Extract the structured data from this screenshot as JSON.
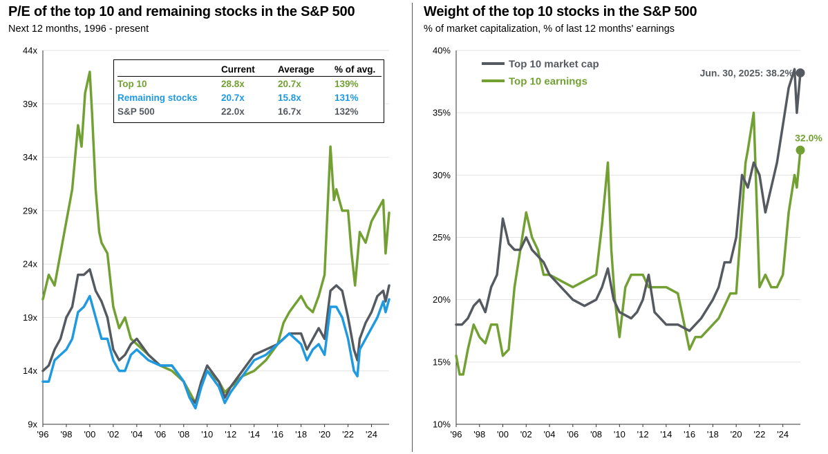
{
  "left": {
    "title": "P/E of the top 10 and remaining stocks in the S&P 500",
    "subtitle": "Next 12 months, 1996 - present",
    "table": {
      "headers": [
        "",
        "Current",
        "Average",
        "% of avg."
      ],
      "rows": [
        {
          "name": "Top 10",
          "current": "28.8x",
          "average": "20.7x",
          "pct": "139%",
          "color": "#72a033"
        },
        {
          "name": "Remaining stocks",
          "current": "20.7x",
          "average": "15.8x",
          "pct": "131%",
          "color": "#1f9ae0"
        },
        {
          "name": "S&P 500",
          "current": "22.0x",
          "average": "16.7x",
          "pct": "132%",
          "color": "#555a60"
        }
      ]
    }
  },
  "right": {
    "title": "Weight of the top 10 stocks in the S&P 500",
    "subtitle": "% of market capitalization, % of last 12 months' earnings",
    "legend": [
      {
        "label": "Top 10 market cap",
        "color": "#555a60"
      },
      {
        "label": "Top 10 earnings",
        "color": "#72a033"
      }
    ],
    "annotations": {
      "market_cap": "Jun. 30, 2025: 38.2%",
      "earnings": "32.0%"
    }
  },
  "chart_data": [
    {
      "type": "line",
      "title": "P/E of the top 10 and remaining stocks in the S&P 500",
      "subtitle": "Next 12 months, 1996 - present",
      "xlabel": "",
      "ylabel": "",
      "xlim": [
        1996,
        2025.5
      ],
      "ylim": [
        9,
        44
      ],
      "xticks": [
        "'96",
        "'98",
        "'00",
        "'02",
        "'04",
        "'06",
        "'08",
        "'10",
        "'12",
        "'14",
        "'16",
        "'18",
        "'20",
        "'22",
        "'24"
      ],
      "yticks": [
        "9x",
        "14x",
        "19x",
        "24x",
        "29x",
        "34x",
        "39x",
        "44x"
      ],
      "series": [
        {
          "name": "Top 10",
          "color": "#72a033",
          "x": [
            1996.0,
            1996.5,
            1997.0,
            1997.5,
            1998.0,
            1998.5,
            1999.0,
            1999.3,
            1999.6,
            2000.0,
            2000.2,
            2000.5,
            2000.8,
            2001.0,
            2001.5,
            2002.0,
            2002.5,
            2003.0,
            2003.5,
            2004.0,
            2005.0,
            2006.0,
            2007.0,
            2008.0,
            2008.5,
            2009.0,
            2009.5,
            2010.0,
            2011.0,
            2011.5,
            2012.0,
            2013.0,
            2014.0,
            2015.0,
            2016.0,
            2016.5,
            2017.0,
            2018.0,
            2018.5,
            2019.0,
            2019.5,
            2020.0,
            2020.5,
            2020.8,
            2021.0,
            2021.5,
            2022.0,
            2022.3,
            2022.6,
            2023.0,
            2023.5,
            2024.0,
            2024.5,
            2025.0,
            2025.2,
            2025.5
          ],
          "y": [
            20.7,
            23,
            22,
            25,
            28,
            31,
            37,
            35,
            40,
            42,
            38,
            31,
            27,
            26,
            25,
            20,
            18,
            19,
            17,
            16.5,
            15.5,
            14.5,
            14,
            13,
            12,
            11,
            13,
            14,
            13,
            12,
            12.5,
            13.5,
            14,
            15,
            16.5,
            18.5,
            19.5,
            21,
            20,
            19.5,
            21,
            23,
            35,
            30,
            31,
            29,
            29,
            25,
            22,
            27,
            26,
            28,
            29,
            30,
            25,
            28.8
          ]
        },
        {
          "name": "Remaining stocks",
          "color": "#1f9ae0",
          "x": [
            1996.0,
            1996.5,
            1997.0,
            1997.5,
            1998.0,
            1998.5,
            1999.0,
            1999.5,
            2000.0,
            2000.5,
            2001.0,
            2001.5,
            2002.0,
            2002.5,
            2003.0,
            2003.5,
            2004.0,
            2005.0,
            2006.0,
            2007.0,
            2008.0,
            2008.5,
            2009.0,
            2009.5,
            2010.0,
            2011.0,
            2011.5,
            2012.0,
            2013.0,
            2014.0,
            2015.0,
            2016.0,
            2017.0,
            2018.0,
            2018.5,
            2019.0,
            2019.5,
            2020.0,
            2020.5,
            2021.0,
            2021.5,
            2022.0,
            2022.5,
            2022.8,
            2023.0,
            2023.5,
            2024.0,
            2024.5,
            2025.0,
            2025.2,
            2025.5
          ],
          "y": [
            13,
            13,
            15,
            15.5,
            16,
            17,
            19.5,
            20,
            21,
            19,
            17,
            17,
            15,
            14,
            14,
            15.5,
            16,
            15,
            14.5,
            14.5,
            13,
            11.5,
            10.5,
            12.5,
            14,
            12.5,
            11,
            12,
            13.5,
            15,
            15.5,
            16.5,
            17.5,
            16.5,
            15,
            16,
            16.5,
            15.5,
            20,
            20,
            19,
            17,
            14,
            13.5,
            16,
            17,
            18,
            19,
            20.5,
            19.5,
            20.7
          ]
        },
        {
          "name": "S&P 500",
          "color": "#555a60",
          "x": [
            1996.0,
            1996.5,
            1997.0,
            1997.5,
            1998.0,
            1998.5,
            1999.0,
            1999.5,
            2000.0,
            2000.5,
            2001.0,
            2001.5,
            2002.0,
            2002.5,
            2003.0,
            2003.5,
            2004.0,
            2005.0,
            2006.0,
            2007.0,
            2008.0,
            2008.5,
            2009.0,
            2009.5,
            2010.0,
            2011.0,
            2011.5,
            2012.0,
            2013.0,
            2014.0,
            2015.0,
            2016.0,
            2017.0,
            2018.0,
            2018.5,
            2019.0,
            2019.5,
            2020.0,
            2020.5,
            2021.0,
            2021.5,
            2022.0,
            2022.5,
            2022.8,
            2023.0,
            2023.5,
            2024.0,
            2024.5,
            2025.0,
            2025.2,
            2025.5
          ],
          "y": [
            14,
            14.5,
            16,
            17,
            19,
            20,
            23,
            23,
            23.5,
            21.5,
            20.5,
            19,
            16,
            15,
            15.5,
            16.5,
            17,
            15.5,
            14.5,
            14.5,
            13,
            11.5,
            11,
            13,
            14.5,
            13,
            11.5,
            12.5,
            14,
            15.5,
            16,
            16.5,
            17.5,
            17.5,
            16,
            17,
            18,
            17,
            21.5,
            22,
            21.5,
            19,
            16,
            15,
            17,
            18.5,
            19.5,
            21,
            21.5,
            20.5,
            22.0
          ]
        }
      ]
    },
    {
      "type": "line",
      "title": "Weight of the top 10 stocks in the S&P 500",
      "subtitle": "% of market capitalization, % of last 12 months' earnings",
      "xlabel": "",
      "ylabel": "",
      "xlim": [
        1996,
        2025.5
      ],
      "ylim": [
        10,
        40
      ],
      "xticks": [
        "'96",
        "'98",
        "'00",
        "'02",
        "'04",
        "'06",
        "'08",
        "'10",
        "'12",
        "'14",
        "'16",
        "'18",
        "'20",
        "'22",
        "'24"
      ],
      "yticks": [
        "10%",
        "15%",
        "20%",
        "25%",
        "30%",
        "35%",
        "40%"
      ],
      "series": [
        {
          "name": "Top 10 market cap",
          "color": "#555a60",
          "x": [
            1996.0,
            1996.5,
            1997.0,
            1997.5,
            1998.0,
            1998.5,
            1999.0,
            1999.5,
            2000.0,
            2000.5,
            2001.0,
            2001.5,
            2002.0,
            2002.5,
            2003.0,
            2003.5,
            2004.0,
            2005.0,
            2006.0,
            2007.0,
            2008.0,
            2008.5,
            2009.0,
            2009.5,
            2010.0,
            2011.0,
            2011.5,
            2012.0,
            2012.5,
            2013.0,
            2014.0,
            2015.0,
            2016.0,
            2016.5,
            2017.0,
            2018.0,
            2018.5,
            2019.0,
            2019.5,
            2020.0,
            2020.5,
            2021.0,
            2021.5,
            2022.0,
            2022.5,
            2023.0,
            2023.5,
            2024.0,
            2024.5,
            2025.0,
            2025.2,
            2025.5
          ],
          "y": [
            18,
            18,
            18.5,
            19.5,
            20,
            19,
            21,
            22,
            26.5,
            24.5,
            24,
            24,
            25,
            24,
            23.5,
            23,
            22,
            21,
            20,
            19.5,
            20,
            21,
            22.5,
            20,
            19,
            18.5,
            19,
            20,
            22,
            19,
            18,
            18,
            17.5,
            18,
            18.5,
            20,
            21,
            23,
            23,
            25,
            30,
            29,
            31,
            30,
            27,
            29,
            31,
            34,
            37,
            38.5,
            35,
            38.2
          ]
        },
        {
          "name": "Top 10 earnings",
          "color": "#72a033",
          "x": [
            1996.0,
            1996.3,
            1996.6,
            1997.0,
            1997.5,
            1998.0,
            1998.5,
            1999.0,
            1999.5,
            2000.0,
            2000.5,
            2001.0,
            2001.5,
            2002.0,
            2002.5,
            2003.0,
            2003.5,
            2004.0,
            2005.0,
            2006.0,
            2007.0,
            2008.0,
            2008.5,
            2009.0,
            2009.3,
            2009.6,
            2010.0,
            2010.5,
            2011.0,
            2011.5,
            2012.0,
            2012.5,
            2013.0,
            2014.0,
            2015.0,
            2016.0,
            2016.5,
            2017.0,
            2018.0,
            2018.5,
            2019.0,
            2019.5,
            2020.0,
            2020.5,
            2020.8,
            2021.0,
            2021.5,
            2022.0,
            2022.5,
            2023.0,
            2023.5,
            2024.0,
            2024.5,
            2025.0,
            2025.2,
            2025.5
          ],
          "y": [
            15.5,
            14,
            14,
            16,
            18,
            17,
            16.5,
            18,
            18,
            15.5,
            16,
            21,
            24,
            27,
            25,
            24,
            22,
            22,
            21.5,
            21,
            21.5,
            22,
            26,
            31,
            24,
            20,
            17,
            21,
            22,
            22,
            22,
            21,
            21,
            21,
            20.5,
            16,
            17,
            17,
            18,
            18.5,
            19.5,
            20.5,
            20.5,
            27,
            31,
            32,
            35,
            21,
            22,
            21,
            21,
            22,
            27,
            30,
            29,
            32.0
          ]
        }
      ]
    }
  ]
}
